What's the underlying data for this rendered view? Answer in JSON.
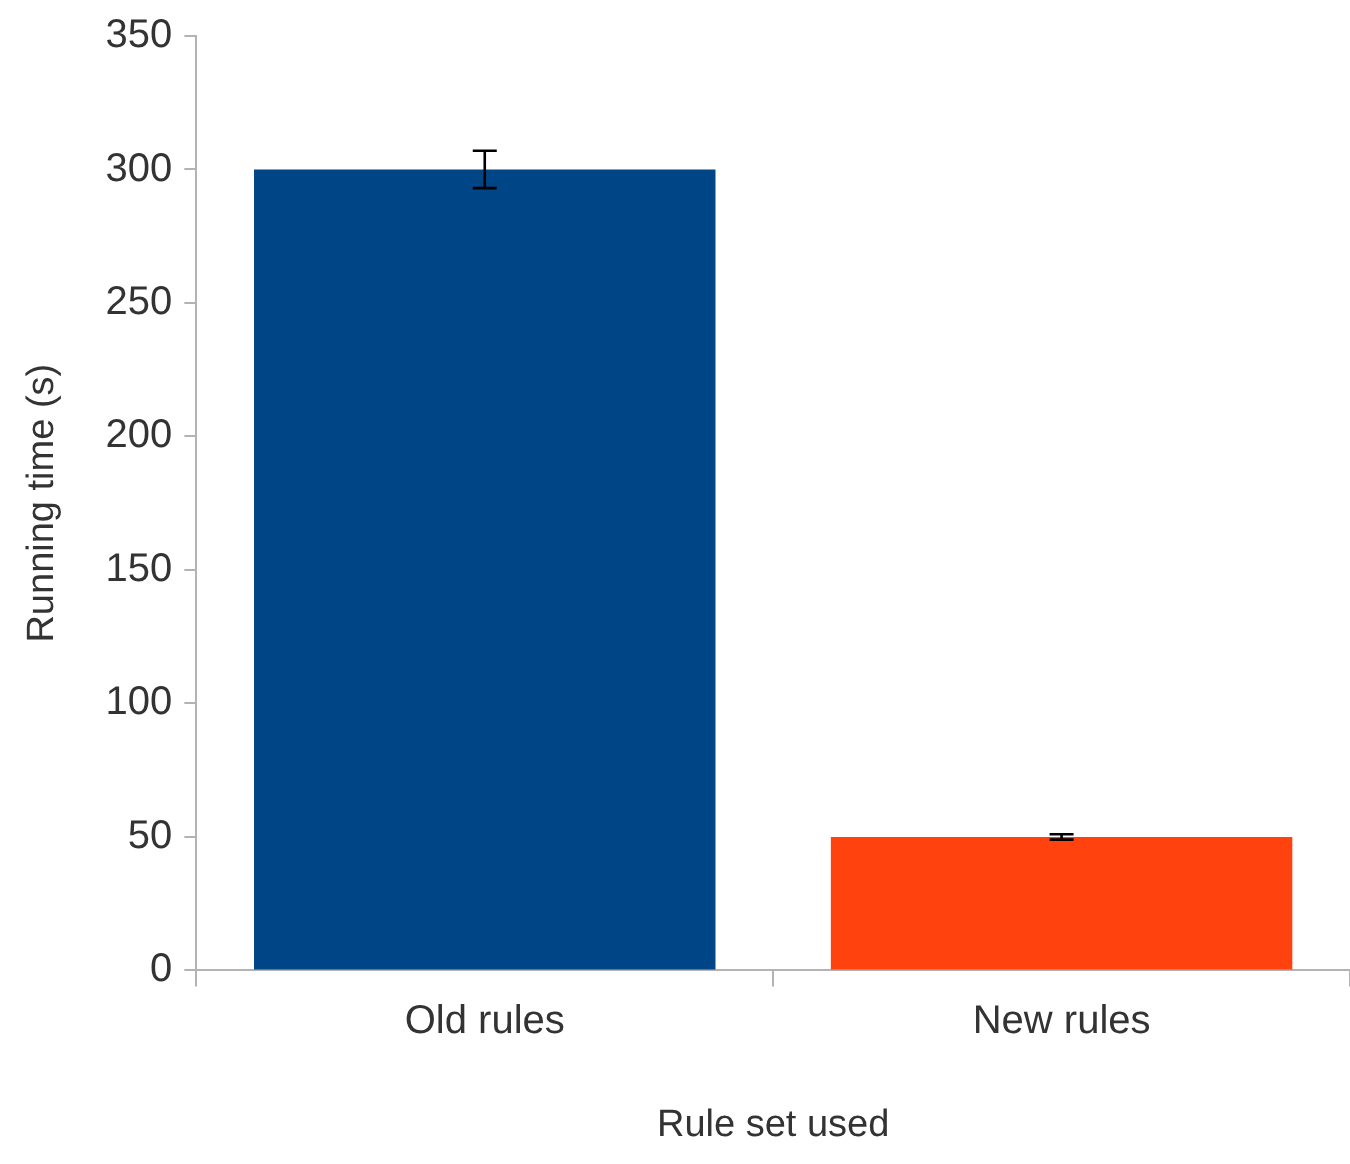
{
  "chart_data": {
    "type": "bar",
    "xlabel": "Rule set used",
    "ylabel": "Running time (s)",
    "categories": [
      "Old rules",
      "New rules"
    ],
    "values": [
      300,
      50
    ],
    "colors": [
      "#004586",
      "#ff420e"
    ],
    "errors": [
      7,
      1
    ],
    "ylim": [
      0,
      350
    ],
    "yticks": [
      0,
      50,
      100,
      150,
      200,
      250,
      300,
      350
    ],
    "grid": false,
    "legend": false
  }
}
